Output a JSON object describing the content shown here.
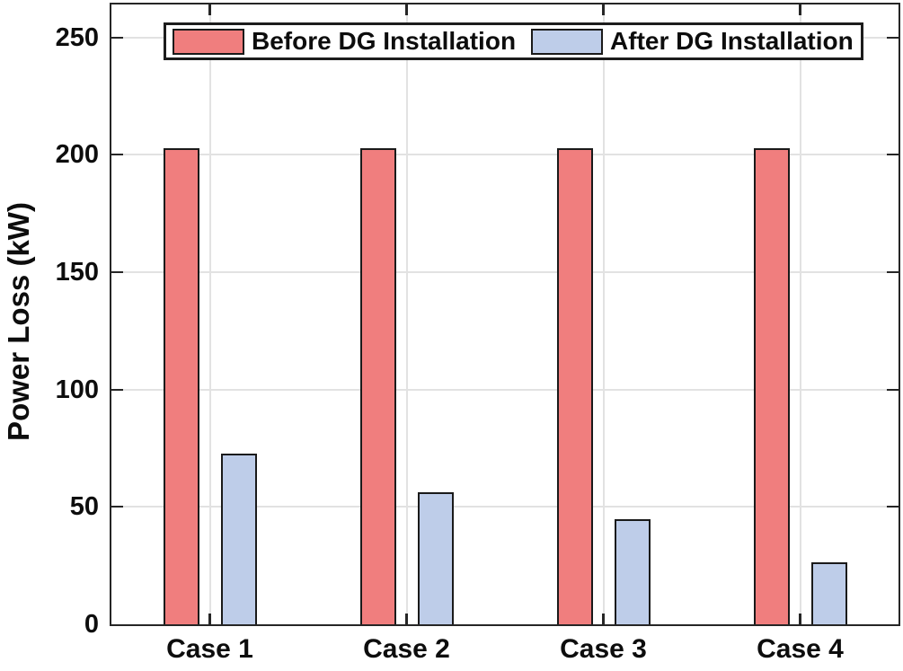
{
  "chart_data": {
    "type": "bar",
    "title": "",
    "xlabel": "",
    "ylabel": "Power Loss (kW)",
    "categories": [
      "Case 1",
      "Case 2",
      "Case 3",
      "Case 4"
    ],
    "series": [
      {
        "name": "Before DG Installation",
        "color": "#F07E7E",
        "values": [
          202.7,
          202.7,
          202.7,
          202.7
        ]
      },
      {
        "name": "After DG Installation",
        "color": "#BECDE9",
        "values": [
          72.8,
          56.1,
          44.6,
          26.3
        ]
      }
    ],
    "ylim": [
      0,
      264
    ],
    "yticks": [
      0,
      50,
      100,
      150,
      200,
      250
    ],
    "grid": "both",
    "legend_position": "top-inside",
    "style": {
      "axis_color": "#262626",
      "grid_color": "#E2E2E2",
      "bar_edge_color": "#1A1A1A",
      "text_color": "#0D0D0D",
      "background": "#FFFFFF"
    }
  }
}
